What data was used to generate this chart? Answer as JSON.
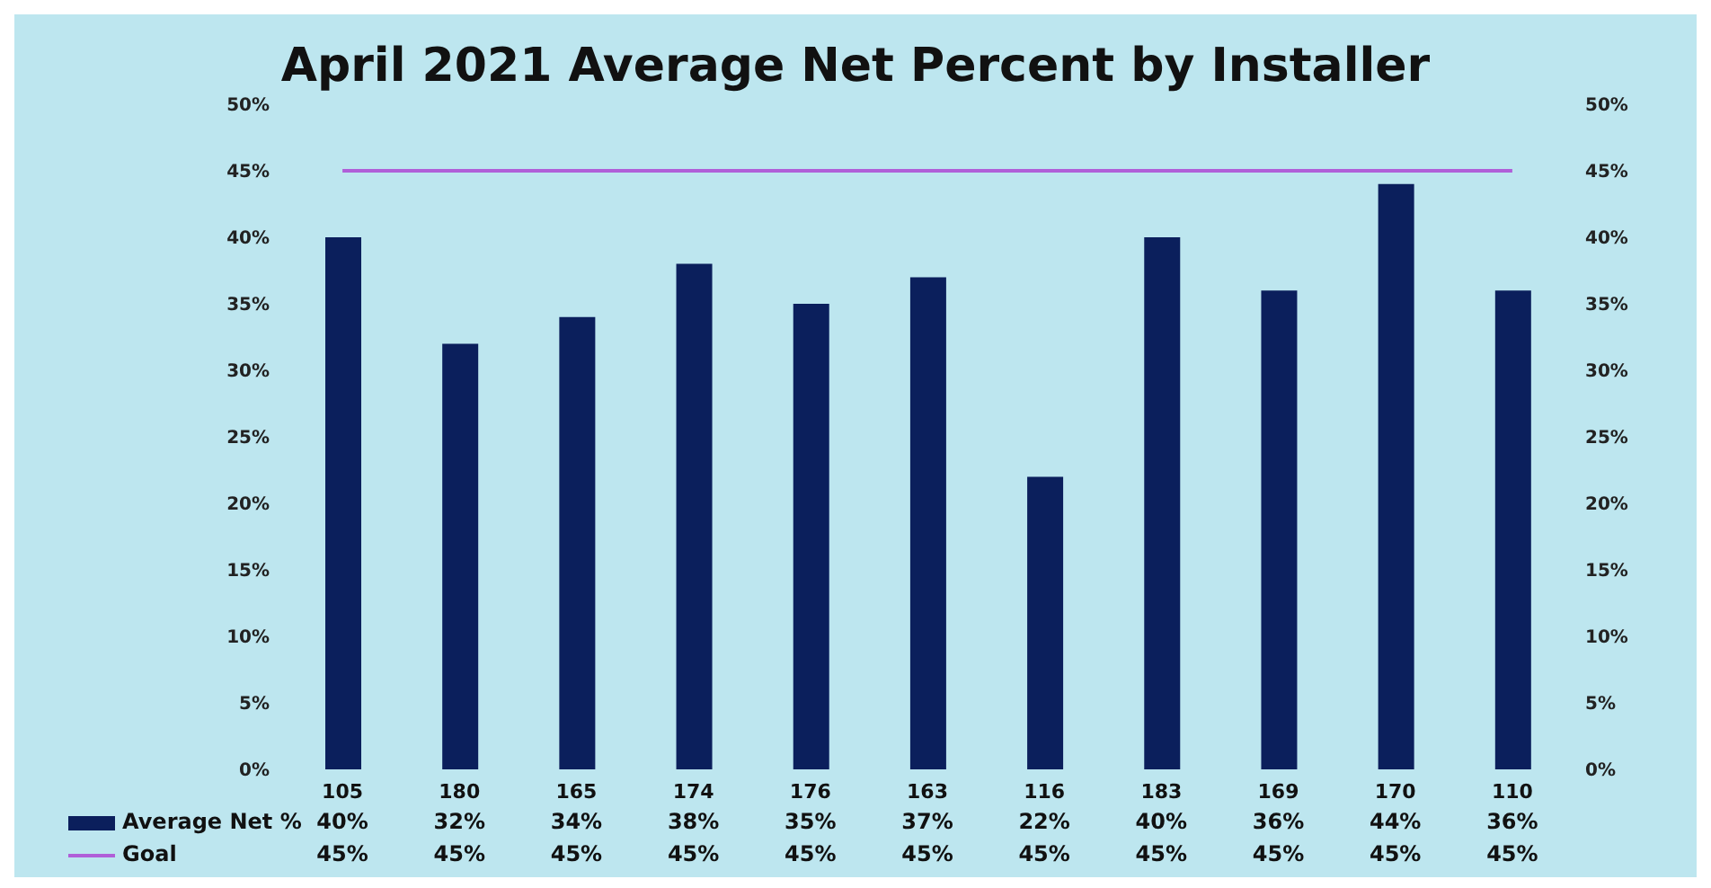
{
  "chart_data": {
    "type": "bar",
    "title": "April 2021 Average Net Percent by Installer",
    "categories": [
      "105",
      "180",
      "165",
      "174",
      "176",
      "163",
      "116",
      "183",
      "169",
      "170",
      "110"
    ],
    "series": [
      {
        "name": "Average Net %",
        "color": "#0b1f5c",
        "values": [
          40,
          32,
          34,
          38,
          35,
          37,
          22,
          40,
          36,
          44,
          36
        ],
        "value_labels": [
          "40%",
          "32%",
          "34%",
          "38%",
          "35%",
          "37%",
          "22%",
          "40%",
          "36%",
          "44%",
          "36%"
        ]
      },
      {
        "name": "Goal",
        "type": "line",
        "color": "#b05fd8",
        "values": [
          45,
          45,
          45,
          45,
          45,
          45,
          45,
          45,
          45,
          45,
          45
        ],
        "value_labels": [
          "45%",
          "45%",
          "45%",
          "45%",
          "45%",
          "45%",
          "45%",
          "45%",
          "45%",
          "45%",
          "45%"
        ]
      }
    ],
    "ylim": [
      0,
      50
    ],
    "yticks": [
      {
        "value": 0,
        "label": "0%"
      },
      {
        "value": 5,
        "label": "5%"
      },
      {
        "value": 10,
        "label": "10%"
      },
      {
        "value": 15,
        "label": "15%"
      },
      {
        "value": 20,
        "label": "20%"
      },
      {
        "value": 25,
        "label": "25%"
      },
      {
        "value": 30,
        "label": "30%"
      },
      {
        "value": 35,
        "label": "35%"
      },
      {
        "value": 40,
        "label": "40%"
      },
      {
        "value": 45,
        "label": "45%"
      },
      {
        "value": 50,
        "label": "50%"
      }
    ],
    "y2lim": [
      0,
      50
    ],
    "y2ticks": [
      {
        "value": 0,
        "label": "0%"
      },
      {
        "value": 5,
        "label": "5%"
      },
      {
        "value": 10,
        "label": "10%"
      },
      {
        "value": 15,
        "label": "15%"
      },
      {
        "value": 20,
        "label": "20%"
      },
      {
        "value": 25,
        "label": "25%"
      },
      {
        "value": 30,
        "label": "30%"
      },
      {
        "value": 35,
        "label": "35%"
      },
      {
        "value": 40,
        "label": "40%"
      },
      {
        "value": 45,
        "label": "45%"
      },
      {
        "value": 50,
        "label": "50%"
      }
    ],
    "grid": false,
    "legend": "bottom",
    "marker": "none",
    "line_style": "solid"
  }
}
